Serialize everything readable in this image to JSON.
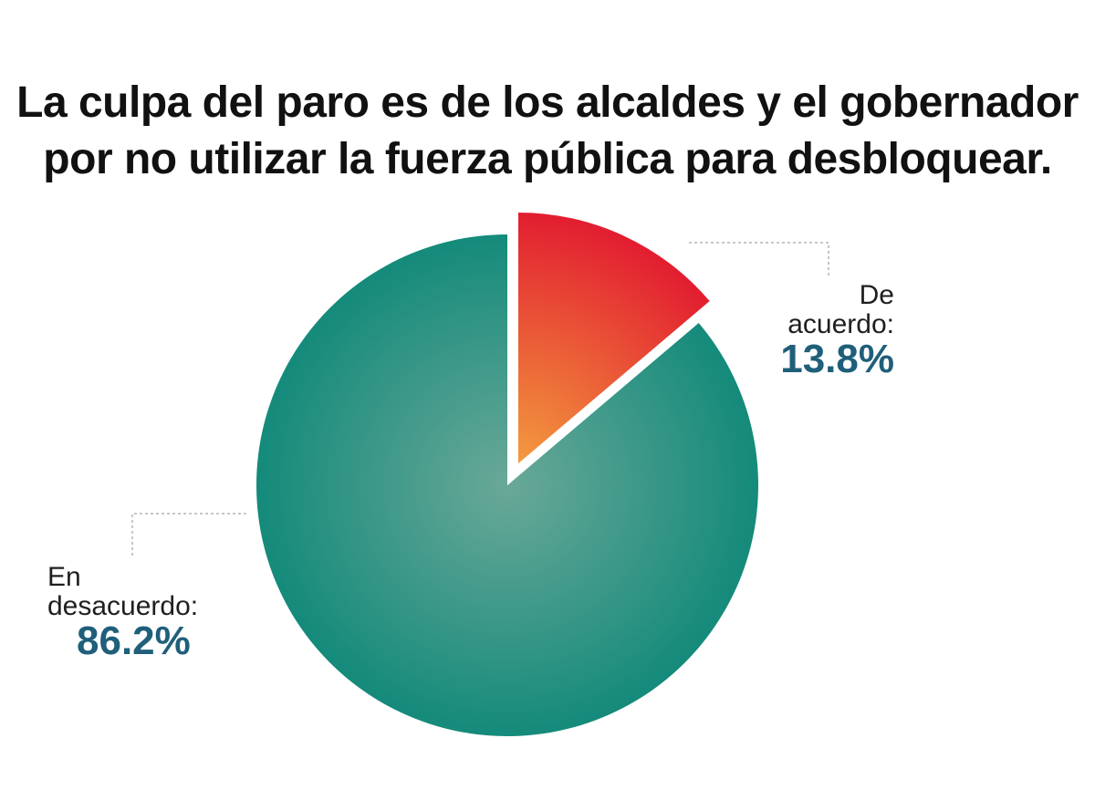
{
  "title": {
    "line1": "La culpa del paro es de los alcaldes y el gobernador",
    "line2": "por no utilizar la fuerza pública para desbloquear."
  },
  "colors": {
    "agree_light": "#f39a3e",
    "agree_dark": "#e0122f",
    "disagree_light": "#6aa898",
    "disagree_dark": "#138a7a",
    "value_text": "#1f5f7a"
  },
  "chart_data": {
    "type": "pie",
    "title": "La culpa del paro es de los alcaldes y el gobernador por no utilizar la fuerza pública para desbloquear.",
    "slices": [
      {
        "name": "De acuerdo:",
        "value": 13.8,
        "label": "13.8%",
        "exploded": true
      },
      {
        "name": "En desacuerdo:",
        "value": 86.2,
        "label": "86.2%",
        "exploded": false
      }
    ]
  }
}
